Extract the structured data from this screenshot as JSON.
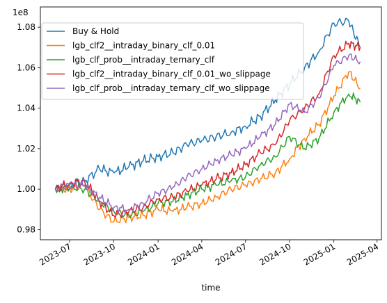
{
  "chart_data": {
    "type": "line",
    "xlabel": "time",
    "ylabel": "",
    "y_scale_label": "1e8",
    "ylim": [
      0.975,
      1.09
    ],
    "y_ticks": [
      0.98,
      1.0,
      1.02,
      1.04,
      1.06,
      1.08
    ],
    "x_range": [
      "2023-05-01",
      "2025-04-10"
    ],
    "x_ticks": [
      "2023-07",
      "2023-10",
      "2024-01",
      "2024-04",
      "2024-07",
      "2024-10",
      "2025-01",
      "2025-04"
    ],
    "grid": false,
    "legend_position": "top-left",
    "colors": {
      "buy_hold": "#1f77b4",
      "binary": "#ff7f0e",
      "ternary": "#2ca02c",
      "binary_wo": "#d62728",
      "ternary_wo": "#9467bd"
    },
    "x": [
      "2023-06-01",
      "2023-07-01",
      "2023-08-01",
      "2023-09-01",
      "2023-10-01",
      "2023-11-01",
      "2023-12-01",
      "2024-01-01",
      "2024-02-01",
      "2024-03-01",
      "2024-04-01",
      "2024-05-01",
      "2024-06-01",
      "2024-07-01",
      "2024-08-01",
      "2024-09-01",
      "2024-10-01",
      "2024-11-01",
      "2024-12-01",
      "2025-01-01",
      "2025-02-01",
      "2025-02-25"
    ],
    "series": [
      {
        "name": "Buy & Hold",
        "color": "#1f77b4",
        "values": [
          1.0,
          1.002,
          1.004,
          1.01,
          1.008,
          1.011,
          1.014,
          1.016,
          1.018,
          1.022,
          1.024,
          1.026,
          1.028,
          1.031,
          1.036,
          1.044,
          1.052,
          1.06,
          1.068,
          1.082,
          1.083,
          1.07
        ]
      },
      {
        "name": "lgb_clf2__intraday_binary_clf_0.01",
        "color": "#ff7f0e",
        "values": [
          1.0,
          1.0,
          1.002,
          0.99,
          0.984,
          0.986,
          0.987,
          0.99,
          0.989,
          0.991,
          0.993,
          0.996,
          1.0,
          1.002,
          1.005,
          1.008,
          1.015,
          1.025,
          1.032,
          1.046,
          1.058,
          1.05
        ]
      },
      {
        "name": "lgb_clf_prob__intraday_ternary_clf",
        "color": "#2ca02c",
        "values": [
          1.0,
          1.001,
          1.0,
          0.994,
          0.989,
          0.987,
          0.989,
          0.993,
          0.994,
          0.997,
          1.0,
          1.002,
          1.004,
          1.006,
          1.012,
          1.016,
          1.026,
          1.02,
          1.025,
          1.038,
          1.047,
          1.043
        ]
      },
      {
        "name": "lgb_clf2__intraday_binary_clf_0.01_wo_slippage",
        "color": "#d62728",
        "values": [
          1.0,
          1.003,
          1.004,
          0.994,
          0.987,
          0.989,
          0.991,
          0.995,
          0.996,
          0.999,
          1.002,
          1.005,
          1.008,
          1.012,
          1.018,
          1.022,
          1.034,
          1.04,
          1.047,
          1.066,
          1.072,
          1.07
        ]
      },
      {
        "name": "lgb_clf_prob__intraday_ternary_clf_wo_slippage",
        "color": "#9467bd",
        "values": [
          1.0,
          1.002,
          1.002,
          0.996,
          0.991,
          0.99,
          0.993,
          0.998,
          1.001,
          1.006,
          1.01,
          1.014,
          1.017,
          1.02,
          1.026,
          1.032,
          1.042,
          1.038,
          1.045,
          1.061,
          1.066,
          1.063
        ]
      }
    ]
  }
}
